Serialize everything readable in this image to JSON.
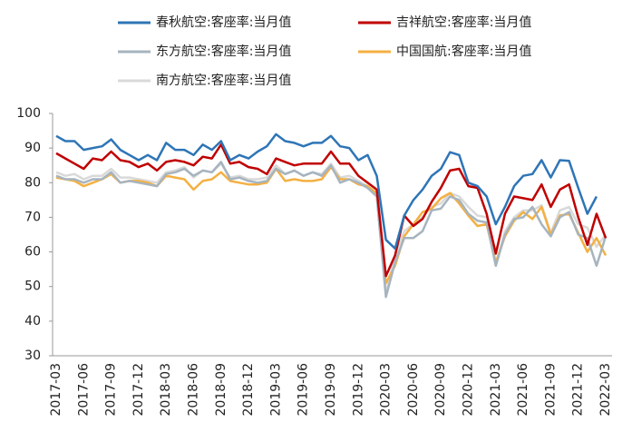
{
  "chart_data": {
    "type": "line",
    "categories": [
      "2017-03",
      null,
      null,
      "2017-06",
      null,
      null,
      "2017-09",
      null,
      null,
      "2017-12",
      null,
      null,
      "2018-03",
      null,
      null,
      "2018-06",
      null,
      null,
      "2018-09",
      null,
      null,
      "2018-12",
      null,
      null,
      "2019-03",
      null,
      null,
      "2019-06",
      null,
      null,
      "2019-09",
      null,
      null,
      "2019-12",
      null,
      null,
      "2020-03",
      null,
      null,
      "2020-06",
      null,
      null,
      "2020-09",
      null,
      null,
      "2020-12",
      null,
      null,
      "2021-03",
      null,
      null,
      "2021-06",
      null,
      null,
      "2021-09",
      null,
      null,
      "2021-12",
      null,
      null,
      "2022-03"
    ],
    "series": [
      {
        "name": "春秋航空:客座率:当月值",
        "color": "#2e75b6",
        "values": [
          93.5,
          92,
          92,
          89.5,
          90,
          90.5,
          92.5,
          89.5,
          88,
          86.5,
          88,
          86.5,
          91.5,
          89.5,
          89.5,
          88,
          91,
          89.5,
          92,
          86.5,
          88,
          87,
          89,
          90.5,
          94,
          92,
          91.5,
          90.5,
          91.5,
          91.5,
          93.5,
          90.5,
          90,
          86.5,
          88,
          82,
          63.5,
          61,
          70.5,
          75,
          78,
          82,
          84,
          88.8,
          88,
          80,
          79,
          76,
          68,
          73,
          79,
          82,
          82.5,
          86.5,
          81.5,
          86.5,
          86.3,
          78.5,
          71,
          76,
          null
        ]
      },
      {
        "name": "吉祥航空:客座率:当月值",
        "color": "#c00000",
        "values": [
          88.5,
          87,
          85.5,
          84,
          87,
          86.5,
          89,
          86.5,
          86,
          84.5,
          85.5,
          83.5,
          86,
          86.5,
          86,
          85,
          87.5,
          87,
          91,
          85.5,
          86,
          84.5,
          84,
          82.5,
          87,
          86,
          85,
          85.5,
          85.5,
          85.5,
          89,
          85.5,
          85.5,
          82,
          80,
          78,
          53,
          59,
          70.5,
          67.5,
          69.5,
          74.5,
          78.5,
          83.5,
          84,
          79,
          78.5,
          71,
          59.5,
          71,
          76,
          75.5,
          75,
          79.5,
          73,
          78,
          79.5,
          70,
          62,
          71,
          64
        ]
      },
      {
        "name": "东方航空:客座率:当月值",
        "color": "#a6b4bf",
        "values": [
          82,
          81,
          81,
          80,
          81,
          81,
          83,
          80,
          80.5,
          80,
          79.5,
          79,
          82.5,
          83,
          84,
          82,
          83.5,
          83,
          86,
          81,
          81.5,
          80.5,
          80,
          80.5,
          84,
          82.5,
          83.5,
          82,
          83,
          82,
          85,
          80,
          81,
          80,
          78.5,
          76,
          47,
          57,
          64,
          64,
          66,
          72,
          72.5,
          76,
          75,
          71,
          69,
          68.5,
          56,
          65,
          69.5,
          70,
          73,
          68,
          64.5,
          70,
          71.5,
          65,
          64,
          56,
          64.5
        ]
      },
      {
        "name": "中国国航:客座率:当月值",
        "color": "#f4b042",
        "values": [
          81.5,
          81,
          80.5,
          79,
          80,
          81,
          82.5,
          80,
          80.5,
          80.5,
          80,
          79,
          82,
          81.5,
          81,
          78,
          80.5,
          81,
          83,
          80.5,
          80,
          79.5,
          79.5,
          80,
          84,
          80.5,
          81,
          80.5,
          80.5,
          81,
          84.5,
          81,
          81,
          79.5,
          79,
          77,
          51,
          56,
          64.5,
          68,
          71.5,
          72.5,
          75.5,
          77,
          74,
          70.5,
          67.5,
          68,
          57,
          64.5,
          69,
          71.5,
          69.5,
          73,
          65,
          70.5,
          71,
          65.5,
          60,
          64,
          59
        ]
      },
      {
        "name": "南方航空:客座率:当月值",
        "color": "#d9d9d9",
        "values": [
          83,
          82,
          82.5,
          81,
          82,
          82,
          84,
          81.5,
          81.5,
          81,
          80.5,
          80,
          83,
          83.5,
          84.5,
          81.5,
          83.5,
          83,
          85.5,
          81.5,
          82,
          81,
          81,
          81.5,
          85,
          82.5,
          83.5,
          82,
          83,
          82.5,
          85.5,
          81.5,
          82,
          80.5,
          79,
          76.5,
          48,
          59,
          66,
          68,
          70,
          73,
          74,
          77,
          76,
          73,
          70.5,
          70,
          56,
          66,
          70,
          72,
          72,
          73.5,
          65.5,
          72,
          73,
          68,
          67,
          61.5,
          65
        ]
      }
    ],
    "ylim": [
      30,
      100
    ],
    "yticks": [
      30,
      40,
      50,
      60,
      70,
      80,
      90,
      100
    ],
    "grid": false
  }
}
